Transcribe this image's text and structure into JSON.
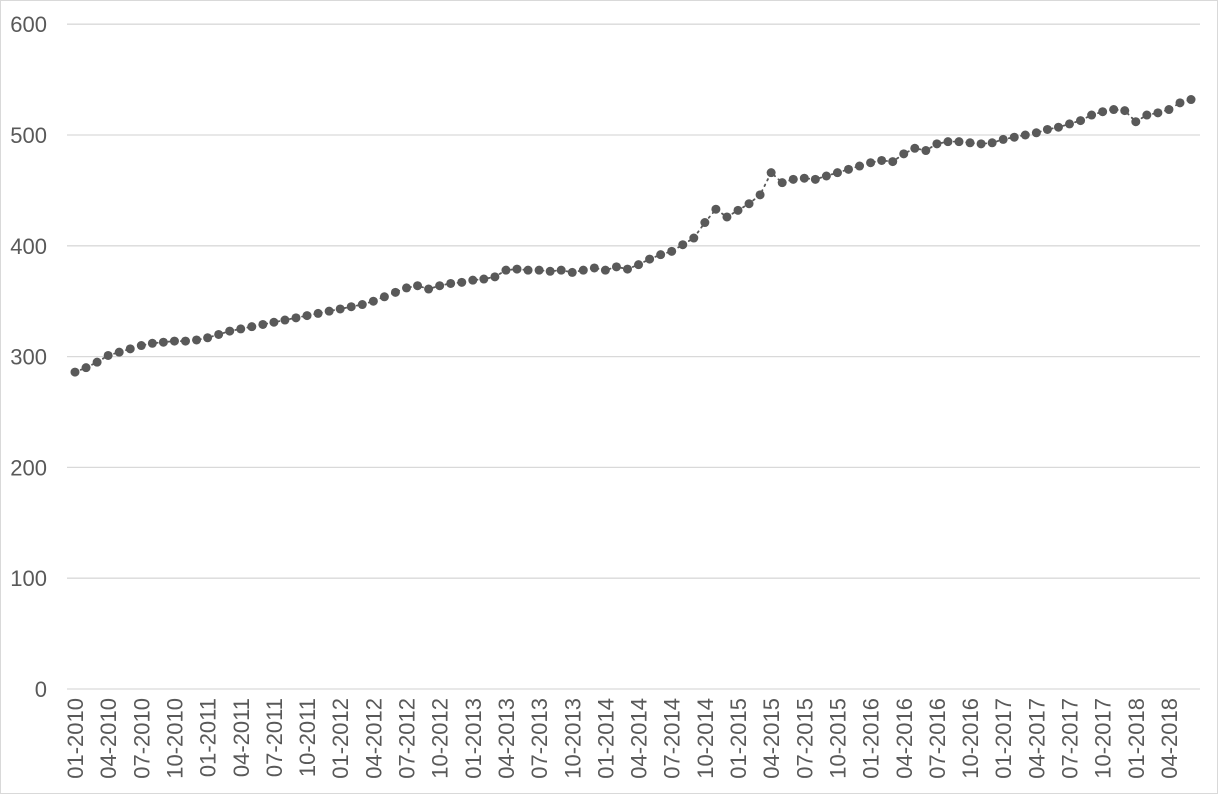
{
  "window": {
    "background_color": "#ffffff",
    "border_color": "#d9d9d9"
  },
  "chart_data": {
    "type": "scatter",
    "title": "",
    "xlabel": "",
    "ylabel": "",
    "legend": "none",
    "grid": "horizontal",
    "marker_color": "#595959",
    "connector_style": "dotted",
    "gridline_color": "#d9d9d9",
    "axis_line_color": "#d9d9d9",
    "axis_label_color": "#595959",
    "ylim": [
      0,
      600
    ],
    "y_ticks": [
      0,
      100,
      200,
      300,
      400,
      500,
      600
    ],
    "x_tick_interval": 3,
    "x_tick_labels": [
      "01-2010",
      "04-2010",
      "07-2010",
      "10-2010",
      "01-2011",
      "04-2011",
      "07-2011",
      "10-2011",
      "01-2012",
      "04-2012",
      "07-2012",
      "10-2012",
      "01-2013",
      "04-2013",
      "07-2013",
      "10-2013",
      "01-2014",
      "04-2014",
      "07-2014",
      "10-2014",
      "01-2015",
      "04-2015",
      "07-2015",
      "10-2015",
      "01-2016",
      "04-2016",
      "07-2016",
      "10-2016",
      "01-2017",
      "04-2017",
      "07-2017",
      "10-2017",
      "01-2018",
      "04-2018"
    ],
    "x": [
      "01-2010",
      "02-2010",
      "03-2010",
      "04-2010",
      "05-2010",
      "06-2010",
      "07-2010",
      "08-2010",
      "09-2010",
      "10-2010",
      "11-2010",
      "12-2010",
      "01-2011",
      "02-2011",
      "03-2011",
      "04-2011",
      "05-2011",
      "06-2011",
      "07-2011",
      "08-2011",
      "09-2011",
      "10-2011",
      "11-2011",
      "12-2011",
      "01-2012",
      "02-2012",
      "03-2012",
      "04-2012",
      "05-2012",
      "06-2012",
      "07-2012",
      "08-2012",
      "09-2012",
      "10-2012",
      "11-2012",
      "12-2012",
      "01-2013",
      "02-2013",
      "03-2013",
      "04-2013",
      "05-2013",
      "06-2013",
      "07-2013",
      "08-2013",
      "09-2013",
      "10-2013",
      "11-2013",
      "12-2013",
      "01-2014",
      "02-2014",
      "03-2014",
      "04-2014",
      "05-2014",
      "06-2014",
      "07-2014",
      "08-2014",
      "09-2014",
      "10-2014",
      "11-2014",
      "12-2014",
      "01-2015",
      "02-2015",
      "03-2015",
      "04-2015",
      "05-2015",
      "06-2015",
      "07-2015",
      "08-2015",
      "09-2015",
      "10-2015",
      "11-2015",
      "12-2015",
      "01-2016",
      "02-2016",
      "03-2016",
      "04-2016",
      "05-2016",
      "06-2016",
      "07-2016",
      "08-2016",
      "09-2016",
      "10-2016",
      "11-2016",
      "12-2016",
      "01-2017",
      "02-2017",
      "03-2017",
      "04-2017",
      "05-2017",
      "06-2017",
      "07-2017",
      "08-2017",
      "09-2017",
      "10-2017",
      "11-2017",
      "12-2017",
      "01-2018",
      "02-2018",
      "03-2018",
      "04-2018",
      "05-2018",
      "06-2018"
    ],
    "values": [
      286,
      290,
      295,
      301,
      304,
      307,
      310,
      312,
      313,
      314,
      314,
      315,
      317,
      320,
      323,
      325,
      327,
      329,
      331,
      333,
      335,
      337,
      339,
      341,
      343,
      345,
      347,
      350,
      354,
      358,
      362,
      364,
      361,
      364,
      366,
      367,
      369,
      370,
      372,
      378,
      379,
      378,
      378,
      377,
      378,
      376,
      378,
      380,
      378,
      381,
      379,
      383,
      388,
      392,
      395,
      401,
      407,
      421,
      433,
      426,
      432,
      438,
      446,
      466,
      457,
      460,
      461,
      460,
      463,
      466,
      469,
      472,
      475,
      477,
      476,
      483,
      488,
      486,
      492,
      494,
      494,
      493,
      492,
      493,
      496,
      498,
      500,
      502,
      505,
      507,
      510,
      513,
      518,
      521,
      523,
      522,
      512,
      518,
      520,
      523,
      529,
      532
    ]
  }
}
